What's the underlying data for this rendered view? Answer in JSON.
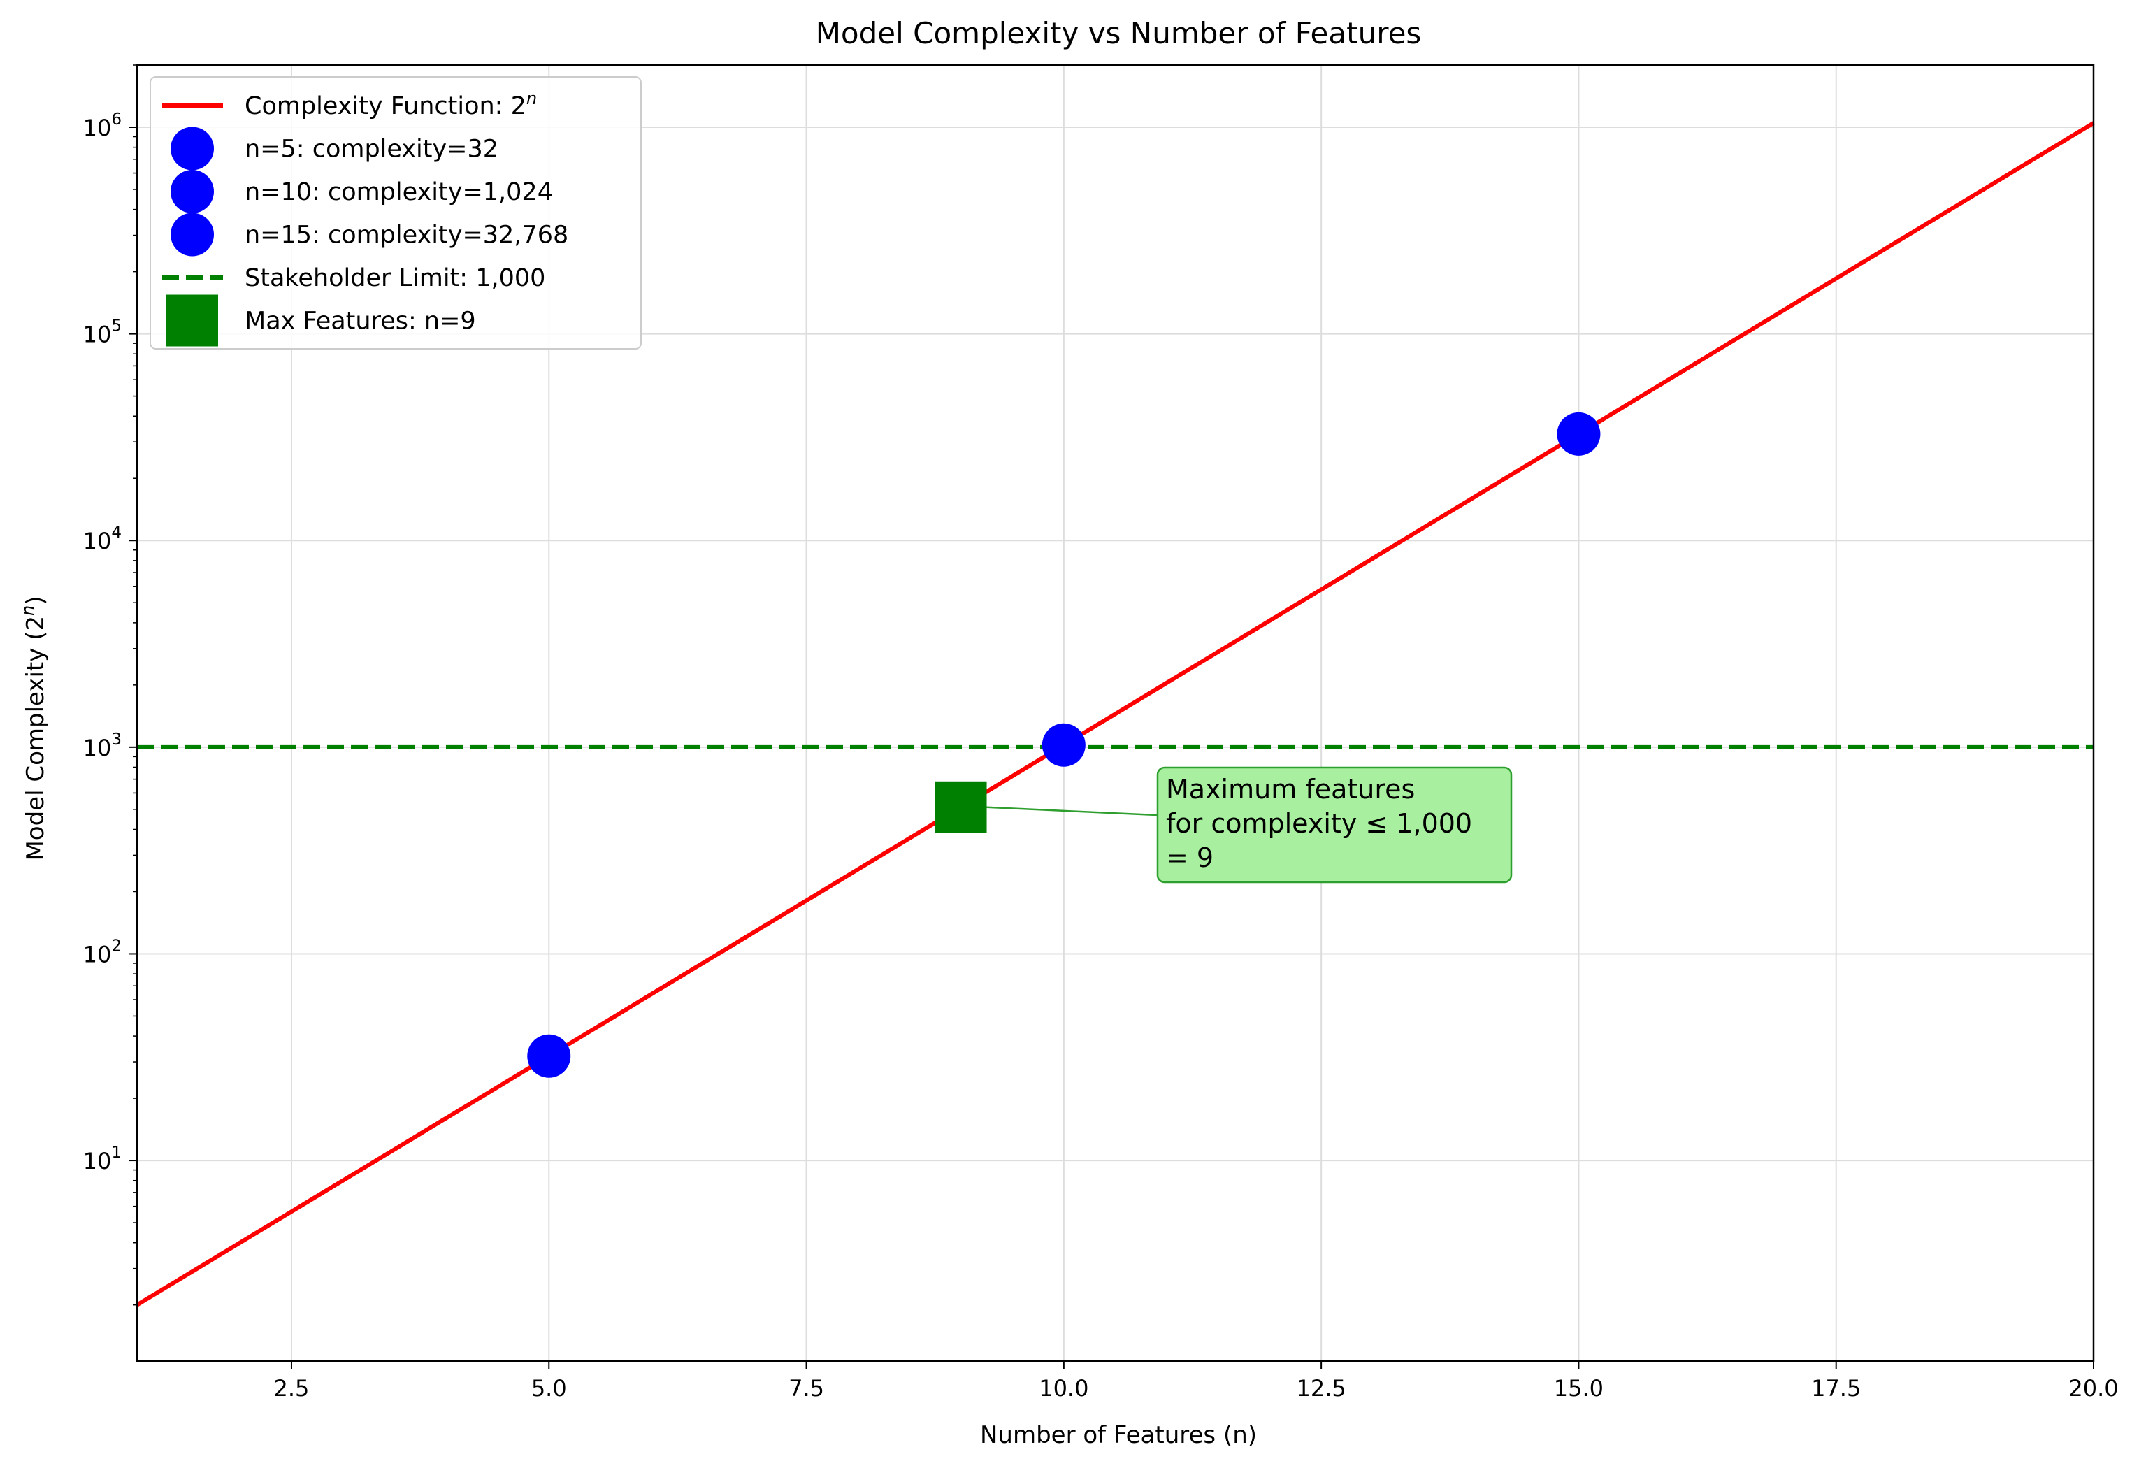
{
  "chart_data": {
    "type": "line",
    "title": "Model Complexity vs Number of Features",
    "xlabel": "Number of Features (n)",
    "ylabel": "Model Complexity (2^n)",
    "xlim": [
      1,
      20
    ],
    "ylim": [
      1.07,
      2000000
    ],
    "yscale": "log",
    "grid": true,
    "legend_position": "top-left",
    "x_ticks": [
      "2.5",
      "5.0",
      "7.5",
      "10.0",
      "12.5",
      "15.0",
      "17.5",
      "20.0"
    ],
    "x_tick_values": [
      2.5,
      5,
      7.5,
      10,
      12.5,
      15,
      17.5,
      20
    ],
    "y_tick_exponents": [
      1,
      2,
      3,
      4,
      5,
      6
    ],
    "series": [
      {
        "name": "Complexity Function: 2^n",
        "kind": "line",
        "color": "#ff0000",
        "x_start": 1,
        "x_end": 20,
        "function": "2^n"
      },
      {
        "name": "n=5: complexity=32",
        "kind": "marker",
        "color": "#0000ff",
        "x": 5,
        "y": 32
      },
      {
        "name": "n=10: complexity=1,024",
        "kind": "marker",
        "color": "#0000ff",
        "x": 10,
        "y": 1024
      },
      {
        "name": "n=15: complexity=32,768",
        "kind": "marker",
        "color": "#0000ff",
        "x": 15,
        "y": 32768
      },
      {
        "name": "Stakeholder Limit: 1,000",
        "kind": "hline",
        "color": "#008000",
        "y": 1000
      },
      {
        "name": "Max Features: n=9",
        "kind": "square",
        "color": "#008000",
        "x": 9,
        "y": 512
      }
    ],
    "legend": [
      {
        "label": "Complexity Function: 2",
        "sup": "n",
        "kind": "line",
        "color": "#ff0000"
      },
      {
        "label": "n=5: complexity=32",
        "kind": "circle",
        "color": "#0000ff"
      },
      {
        "label": "n=10: complexity=1,024",
        "kind": "circle",
        "color": "#0000ff"
      },
      {
        "label": "n=15: complexity=32,768",
        "kind": "circle",
        "color": "#0000ff"
      },
      {
        "label": "Stakeholder Limit: 1,000",
        "kind": "dash",
        "color": "#008000"
      },
      {
        "label": "Max Features: n=9",
        "kind": "square",
        "color": "#008000"
      }
    ],
    "annotation": {
      "lines": [
        "Maximum features",
        "for complexity ≤ 1,000",
        "= 9"
      ],
      "points_to": {
        "x": 9,
        "y": 512
      },
      "box_color": "#a8f0a0",
      "border_color": "#2e9e2e"
    }
  }
}
